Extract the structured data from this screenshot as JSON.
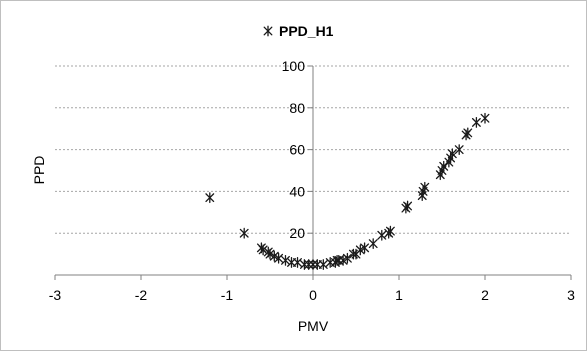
{
  "chart_data": {
    "type": "scatter",
    "title": "",
    "xlabel": "PMV",
    "ylabel": "PPD",
    "xlim": [
      -3,
      3
    ],
    "ylim": [
      0,
      100
    ],
    "x_ticks": [
      "-3",
      "-2",
      "-1",
      "0",
      "1",
      "2",
      "3"
    ],
    "y_ticks": [
      "20",
      "40",
      "60",
      "80",
      "100"
    ],
    "grid": true,
    "legend": "top-center",
    "marker": "asterisk",
    "marker_color": "#1a1a1a",
    "grid_color": "#a6a6a6",
    "series": [
      {
        "name": "PPD_H1",
        "points": [
          [
            -1.2,
            37
          ],
          [
            -0.8,
            20
          ],
          [
            -0.6,
            13
          ],
          [
            -0.58,
            12
          ],
          [
            -0.52,
            11
          ],
          [
            -0.5,
            10
          ],
          [
            -0.45,
            9
          ],
          [
            -0.4,
            8
          ],
          [
            -0.32,
            7
          ],
          [
            -0.25,
            6
          ],
          [
            -0.18,
            6
          ],
          [
            -0.1,
            5
          ],
          [
            -0.05,
            5
          ],
          [
            0.0,
            5
          ],
          [
            0.05,
            5
          ],
          [
            0.12,
            5
          ],
          [
            0.2,
            6
          ],
          [
            0.26,
            6
          ],
          [
            0.28,
            7
          ],
          [
            0.3,
            7
          ],
          [
            0.35,
            7
          ],
          [
            0.4,
            8
          ],
          [
            0.47,
            10
          ],
          [
            0.5,
            10
          ],
          [
            0.55,
            12
          ],
          [
            0.6,
            13
          ],
          [
            0.7,
            15
          ],
          [
            0.8,
            19
          ],
          [
            0.88,
            20
          ],
          [
            0.9,
            21
          ],
          [
            1.08,
            32
          ],
          [
            1.1,
            33
          ],
          [
            1.27,
            38
          ],
          [
            1.28,
            40
          ],
          [
            1.3,
            42
          ],
          [
            1.48,
            48
          ],
          [
            1.5,
            50
          ],
          [
            1.52,
            52
          ],
          [
            1.58,
            54
          ],
          [
            1.6,
            56
          ],
          [
            1.62,
            58
          ],
          [
            1.7,
            60
          ],
          [
            1.78,
            67
          ],
          [
            1.8,
            68
          ],
          [
            1.9,
            73
          ],
          [
            2.0,
            75
          ]
        ]
      }
    ]
  }
}
